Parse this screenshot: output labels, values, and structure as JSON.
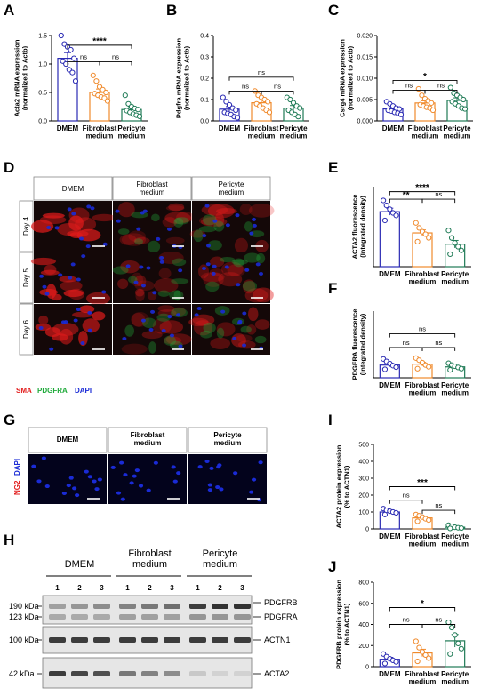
{
  "colors": {
    "dmem": "#2a2ab3",
    "fibroblast": "#f08a2c",
    "pericyte": "#1e7a55",
    "sma_red": "#e21b1b",
    "pdgfra_green": "#1faa3a",
    "dapi_blue": "#1a2bd6",
    "ng2_red": "#e21b1b"
  },
  "panels": {
    "A": "A",
    "B": "B",
    "C": "C",
    "D": "D",
    "E": "E",
    "F": "F",
    "G": "G",
    "H": "H",
    "I": "I",
    "J": "J"
  },
  "categories": [
    "DMEM",
    "Fibroblast\nmedium",
    "Pericyte\nmedium"
  ],
  "chart_data": [
    {
      "id": "A",
      "type": "bar",
      "ylabel_lines": [
        "Acta2 mRNA expression",
        "(normalized to Actb)"
      ],
      "yticks": [
        "0.0",
        "0.5",
        "1.0",
        "1.5"
      ],
      "ylim": [
        0,
        1.5
      ],
      "series": [
        {
          "name": "DMEM",
          "mean": 1.1,
          "sem": 0.1,
          "points": [
            1.5,
            1.35,
            1.3,
            1.25,
            1.1,
            1.05,
            1.0,
            0.9,
            0.85,
            0.7
          ]
        },
        {
          "name": "Fibroblast medium",
          "mean": 0.5,
          "sem": 0.06,
          "points": [
            0.8,
            0.7,
            0.6,
            0.55,
            0.5,
            0.48,
            0.45,
            0.42,
            0.4,
            0.35
          ]
        },
        {
          "name": "Pericyte medium",
          "mean": 0.2,
          "sem": 0.05,
          "points": [
            0.45,
            0.3,
            0.25,
            0.22,
            0.2,
            0.18,
            0.15,
            0.12,
            0.1,
            0.08
          ]
        }
      ],
      "brackets": [
        {
          "from": 0,
          "to": 2,
          "label": "****",
          "level": 1.33
        },
        {
          "from": 0,
          "to": 1,
          "label": "ns",
          "level": 1.04
        },
        {
          "from": 1,
          "to": 2,
          "label": "ns",
          "level": 1.04
        }
      ]
    },
    {
      "id": "B",
      "type": "bar",
      "ylabel_lines": [
        "Pdgfra mRNA expression",
        "(normalized to Actb)"
      ],
      "yticks": [
        "0.0",
        "0.1",
        "0.2",
        "0.3",
        "0.4"
      ],
      "ylim": [
        0,
        0.4
      ],
      "series": [
        {
          "name": "DMEM",
          "mean": 0.055,
          "sem": 0.012,
          "points": [
            0.11,
            0.09,
            0.075,
            0.06,
            0.05,
            0.04,
            0.035,
            0.03,
            0.02,
            0.015
          ]
        },
        {
          "name": "Fibroblast medium",
          "mean": 0.085,
          "sem": 0.013,
          "points": [
            0.14,
            0.12,
            0.11,
            0.1,
            0.09,
            0.08,
            0.07,
            0.06,
            0.05,
            0.04
          ]
        },
        {
          "name": "Pericyte medium",
          "mean": 0.06,
          "sem": 0.012,
          "points": [
            0.11,
            0.1,
            0.085,
            0.07,
            0.06,
            0.05,
            0.04,
            0.03,
            0.02
          ]
        }
      ],
      "brackets": [
        {
          "from": 0,
          "to": 2,
          "label": "ns",
          "level": 0.205
        },
        {
          "from": 0,
          "to": 1,
          "label": "ns",
          "level": 0.14
        },
        {
          "from": 1,
          "to": 2,
          "label": "ns",
          "level": 0.14
        }
      ]
    },
    {
      "id": "C",
      "type": "bar",
      "ylabel_lines": [
        "Csrg4 mRNA expression",
        "(normalized to Actb)"
      ],
      "yticks": [
        "0.000",
        "0.005",
        "0.010",
        "0.015",
        "0.020"
      ],
      "ylim": [
        0,
        0.02
      ],
      "series": [
        {
          "name": "DMEM",
          "mean": 0.0028,
          "sem": 0.0003,
          "points": [
            0.0045,
            0.004,
            0.0035,
            0.003,
            0.0028,
            0.0025,
            0.0023,
            0.002,
            0.0018,
            0.0015
          ]
        },
        {
          "name": "Fibroblast medium",
          "mean": 0.0042,
          "sem": 0.0005,
          "points": [
            0.0075,
            0.006,
            0.0052,
            0.0047,
            0.0042,
            0.0038,
            0.0035,
            0.0032,
            0.003,
            0.0025
          ]
        },
        {
          "name": "Pericyte medium",
          "mean": 0.0048,
          "sem": 0.0006,
          "points": [
            0.0078,
            0.0065,
            0.006,
            0.0055,
            0.005,
            0.0045,
            0.004,
            0.0035,
            0.003,
            0.0028
          ]
        }
      ],
      "brackets": [
        {
          "from": 0,
          "to": 2,
          "label": "*",
          "level": 0.0095
        },
        {
          "from": 0,
          "to": 1,
          "label": "ns",
          "level": 0.0072
        },
        {
          "from": 1,
          "to": 2,
          "label": "ns",
          "level": 0.0072
        }
      ]
    },
    {
      "id": "E",
      "type": "bar",
      "ylabel_lines": [
        "ACTA2 fluorescence",
        "(Integrated density)"
      ],
      "yticks": [],
      "ylim": [
        0,
        3200
      ],
      "series": [
        {
          "name": "DMEM",
          "mean": 2200,
          "sem": 140,
          "points": [
            2650,
            2450,
            2300,
            2150,
            2050,
            1850
          ]
        },
        {
          "name": "Fibroblast medium",
          "mean": 1350,
          "sem": 120,
          "points": [
            1750,
            1550,
            1400,
            1300,
            1150,
            1000
          ]
        },
        {
          "name": "Pericyte medium",
          "mean": 900,
          "sem": 150,
          "points": [
            1450,
            1150,
            950,
            800,
            650,
            500
          ]
        }
      ],
      "brackets": [
        {
          "from": 0,
          "to": 2,
          "label": "****",
          "level": 3000
        },
        {
          "from": 0,
          "to": 1,
          "label": "**",
          "level": 2700
        },
        {
          "from": 1,
          "to": 2,
          "label": "ns",
          "level": 2700
        }
      ]
    },
    {
      "id": "F",
      "type": "bar",
      "ylabel_lines": [
        "PDGFRA fluorescence",
        "(Integrated density)"
      ],
      "yticks": [],
      "ylim": [
        0,
        2200
      ],
      "series": [
        {
          "name": "DMEM",
          "mean": 420,
          "sem": 60,
          "points": [
            620,
            540,
            470,
            400,
            350,
            280
          ]
        },
        {
          "name": "Fibroblast medium",
          "mean": 450,
          "sem": 60,
          "points": [
            650,
            580,
            500,
            420,
            360,
            300
          ]
        },
        {
          "name": "Pericyte medium",
          "mean": 360,
          "sem": 40,
          "points": [
            480,
            420,
            380,
            340,
            300,
            260
          ]
        }
      ],
      "brackets": [
        {
          "from": 0,
          "to": 2,
          "label": "ns",
          "level": 1450
        },
        {
          "from": 0,
          "to": 1,
          "label": "ns",
          "level": 1000
        },
        {
          "from": 1,
          "to": 2,
          "label": "ns",
          "level": 1000
        }
      ]
    },
    {
      "id": "I",
      "type": "bar",
      "ylabel_lines": [
        "ACTA2 protein expression",
        "(% to ACTN1)"
      ],
      "yticks": [
        "0",
        "100",
        "200",
        "300",
        "400",
        "500"
      ],
      "ylim": [
        0,
        500
      ],
      "series": [
        {
          "name": "DMEM",
          "mean": 100,
          "sem": 8,
          "points": [
            120,
            110,
            105,
            100,
            95,
            85
          ]
        },
        {
          "name": "Fibroblast medium",
          "mean": 65,
          "sem": 8,
          "points": [
            85,
            78,
            70,
            60,
            52,
            45
          ]
        },
        {
          "name": "Pericyte medium",
          "mean": 10,
          "sem": 4,
          "points": [
            22,
            15,
            10,
            7,
            5,
            3
          ]
        }
      ],
      "brackets": [
        {
          "from": 0,
          "to": 2,
          "label": "***",
          "level": 250
        },
        {
          "from": 0,
          "to": 1,
          "label": "ns",
          "level": 170
        },
        {
          "from": 1,
          "to": 2,
          "label": "ns",
          "level": 110
        }
      ]
    },
    {
      "id": "J",
      "type": "bar",
      "ylabel_lines": [
        "PDGFRB protein expression",
        "(% to ACTN1)"
      ],
      "yticks": [
        "0",
        "200",
        "400",
        "600",
        "800"
      ],
      "ylim": [
        0,
        800
      ],
      "series": [
        {
          "name": "DMEM",
          "mean": 70,
          "sem": 18,
          "points": [
            120,
            95,
            75,
            60,
            45,
            30
          ]
        },
        {
          "name": "Fibroblast medium",
          "mean": 130,
          "sem": 35,
          "points": [
            240,
            180,
            140,
            110,
            80,
            50
          ]
        },
        {
          "name": "Pericyte medium",
          "mean": 245,
          "sem": 60,
          "points": [
            420,
            370,
            300,
            220,
            170,
            120
          ]
        }
      ],
      "brackets": [
        {
          "from": 0,
          "to": 2,
          "label": "*",
          "level": 560
        },
        {
          "from": 0,
          "to": 1,
          "label": "ns",
          "level": 400
        },
        {
          "from": 1,
          "to": 2,
          "label": "ns",
          "level": 400
        }
      ]
    }
  ],
  "microscopy_D": {
    "columns": [
      "DMEM",
      "Fibroblast\nmedium",
      "Pericyte\nmedium"
    ],
    "rows": [
      "Day 4",
      "Day 5",
      "Day 6"
    ],
    "stain_legend": [
      {
        "text": "SMA",
        "color": "#e21b1b"
      },
      {
        "text": "PDGFRA",
        "color": "#1faa3a"
      },
      {
        "text": "DAPI",
        "color": "#1a2bd6"
      }
    ]
  },
  "microscopy_G": {
    "columns": [
      "DMEM",
      "Fibroblast\nmedium",
      "Pericyte\nmedium"
    ],
    "stain_legend": [
      {
        "text": "NG2",
        "color": "#e21b1b"
      },
      {
        "text": "DAPI",
        "color": "#1a2bd6"
      }
    ]
  },
  "western_H": {
    "groups": [
      "DMEM",
      "Fibroblast\nmedium",
      "Pericyte\nmedium"
    ],
    "lanes": [
      "1",
      "2",
      "3",
      "1",
      "2",
      "3",
      "1",
      "2",
      "3"
    ],
    "markers_left": [
      "190 kDa",
      "123 kDa",
      "100 kDa",
      "42 kDa"
    ],
    "bands_right": [
      "PDGFRB",
      "PDGFRA",
      "ACTN1",
      "ACTA2"
    ]
  }
}
